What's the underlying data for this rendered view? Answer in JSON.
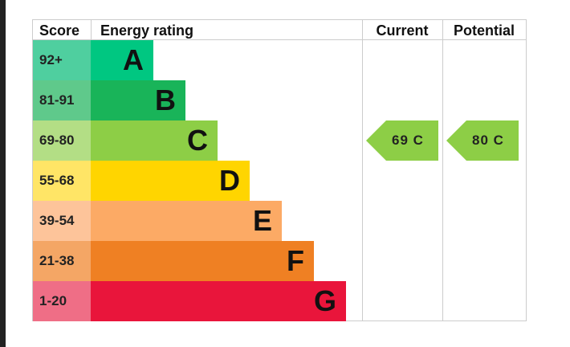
{
  "header": {
    "score": "Score",
    "rating": "Energy rating",
    "current": "Current",
    "potential": "Potential"
  },
  "rows": [
    {
      "score": "92+",
      "letter": "A"
    },
    {
      "score": "81-91",
      "letter": "B"
    },
    {
      "score": "69-80",
      "letter": "C"
    },
    {
      "score": "55-68",
      "letter": "D"
    },
    {
      "score": "39-54",
      "letter": "E"
    },
    {
      "score": "21-38",
      "letter": "F"
    },
    {
      "score": "1-20",
      "letter": "G"
    }
  ],
  "current": {
    "label": "69 C"
  },
  "potential": {
    "label": "80 C"
  }
}
